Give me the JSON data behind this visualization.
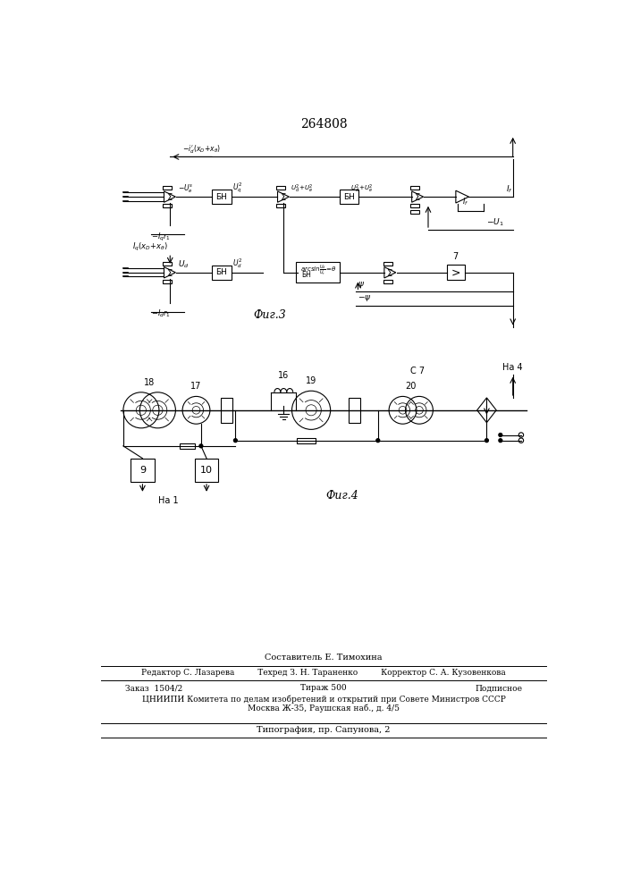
{
  "title": "264808",
  "fig3_label": "Фиг.3",
  "fig4_label": "Фиг.4",
  "background": "#ffffff",
  "line_color": "#000000"
}
